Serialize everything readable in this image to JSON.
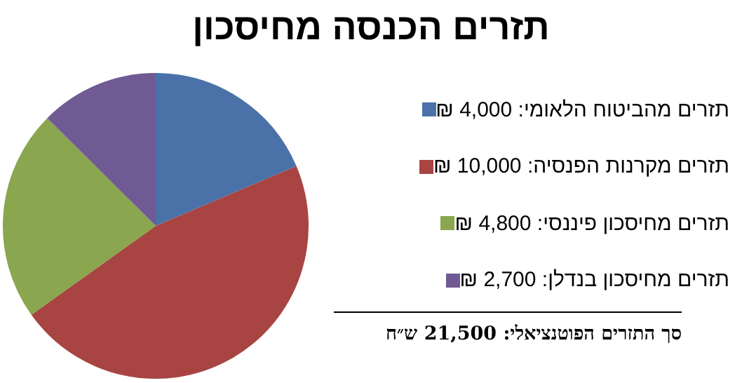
{
  "chart_data": {
    "type": "pie",
    "title": "תזרים הכנסה מחיסכון",
    "categories": [
      "תזרים מהביטוח הלאומי: 4,000 ₪",
      "תזרים מקרנות הפנסיה: 10,000 ₪",
      "תזרים מחיסכון פיננסי: 4,800 ₪",
      "תזרים מחיסכון בנדלן: 2,700 ₪"
    ],
    "values": [
      4000,
      10000,
      4800,
      2700
    ],
    "colors": [
      "#4a72a8",
      "#a84442",
      "#8aa64e",
      "#705a94"
    ],
    "legend": "right",
    "annotations": [
      "סך התזרים הפוטנציאלי: 21,500 ש״ח"
    ]
  }
}
